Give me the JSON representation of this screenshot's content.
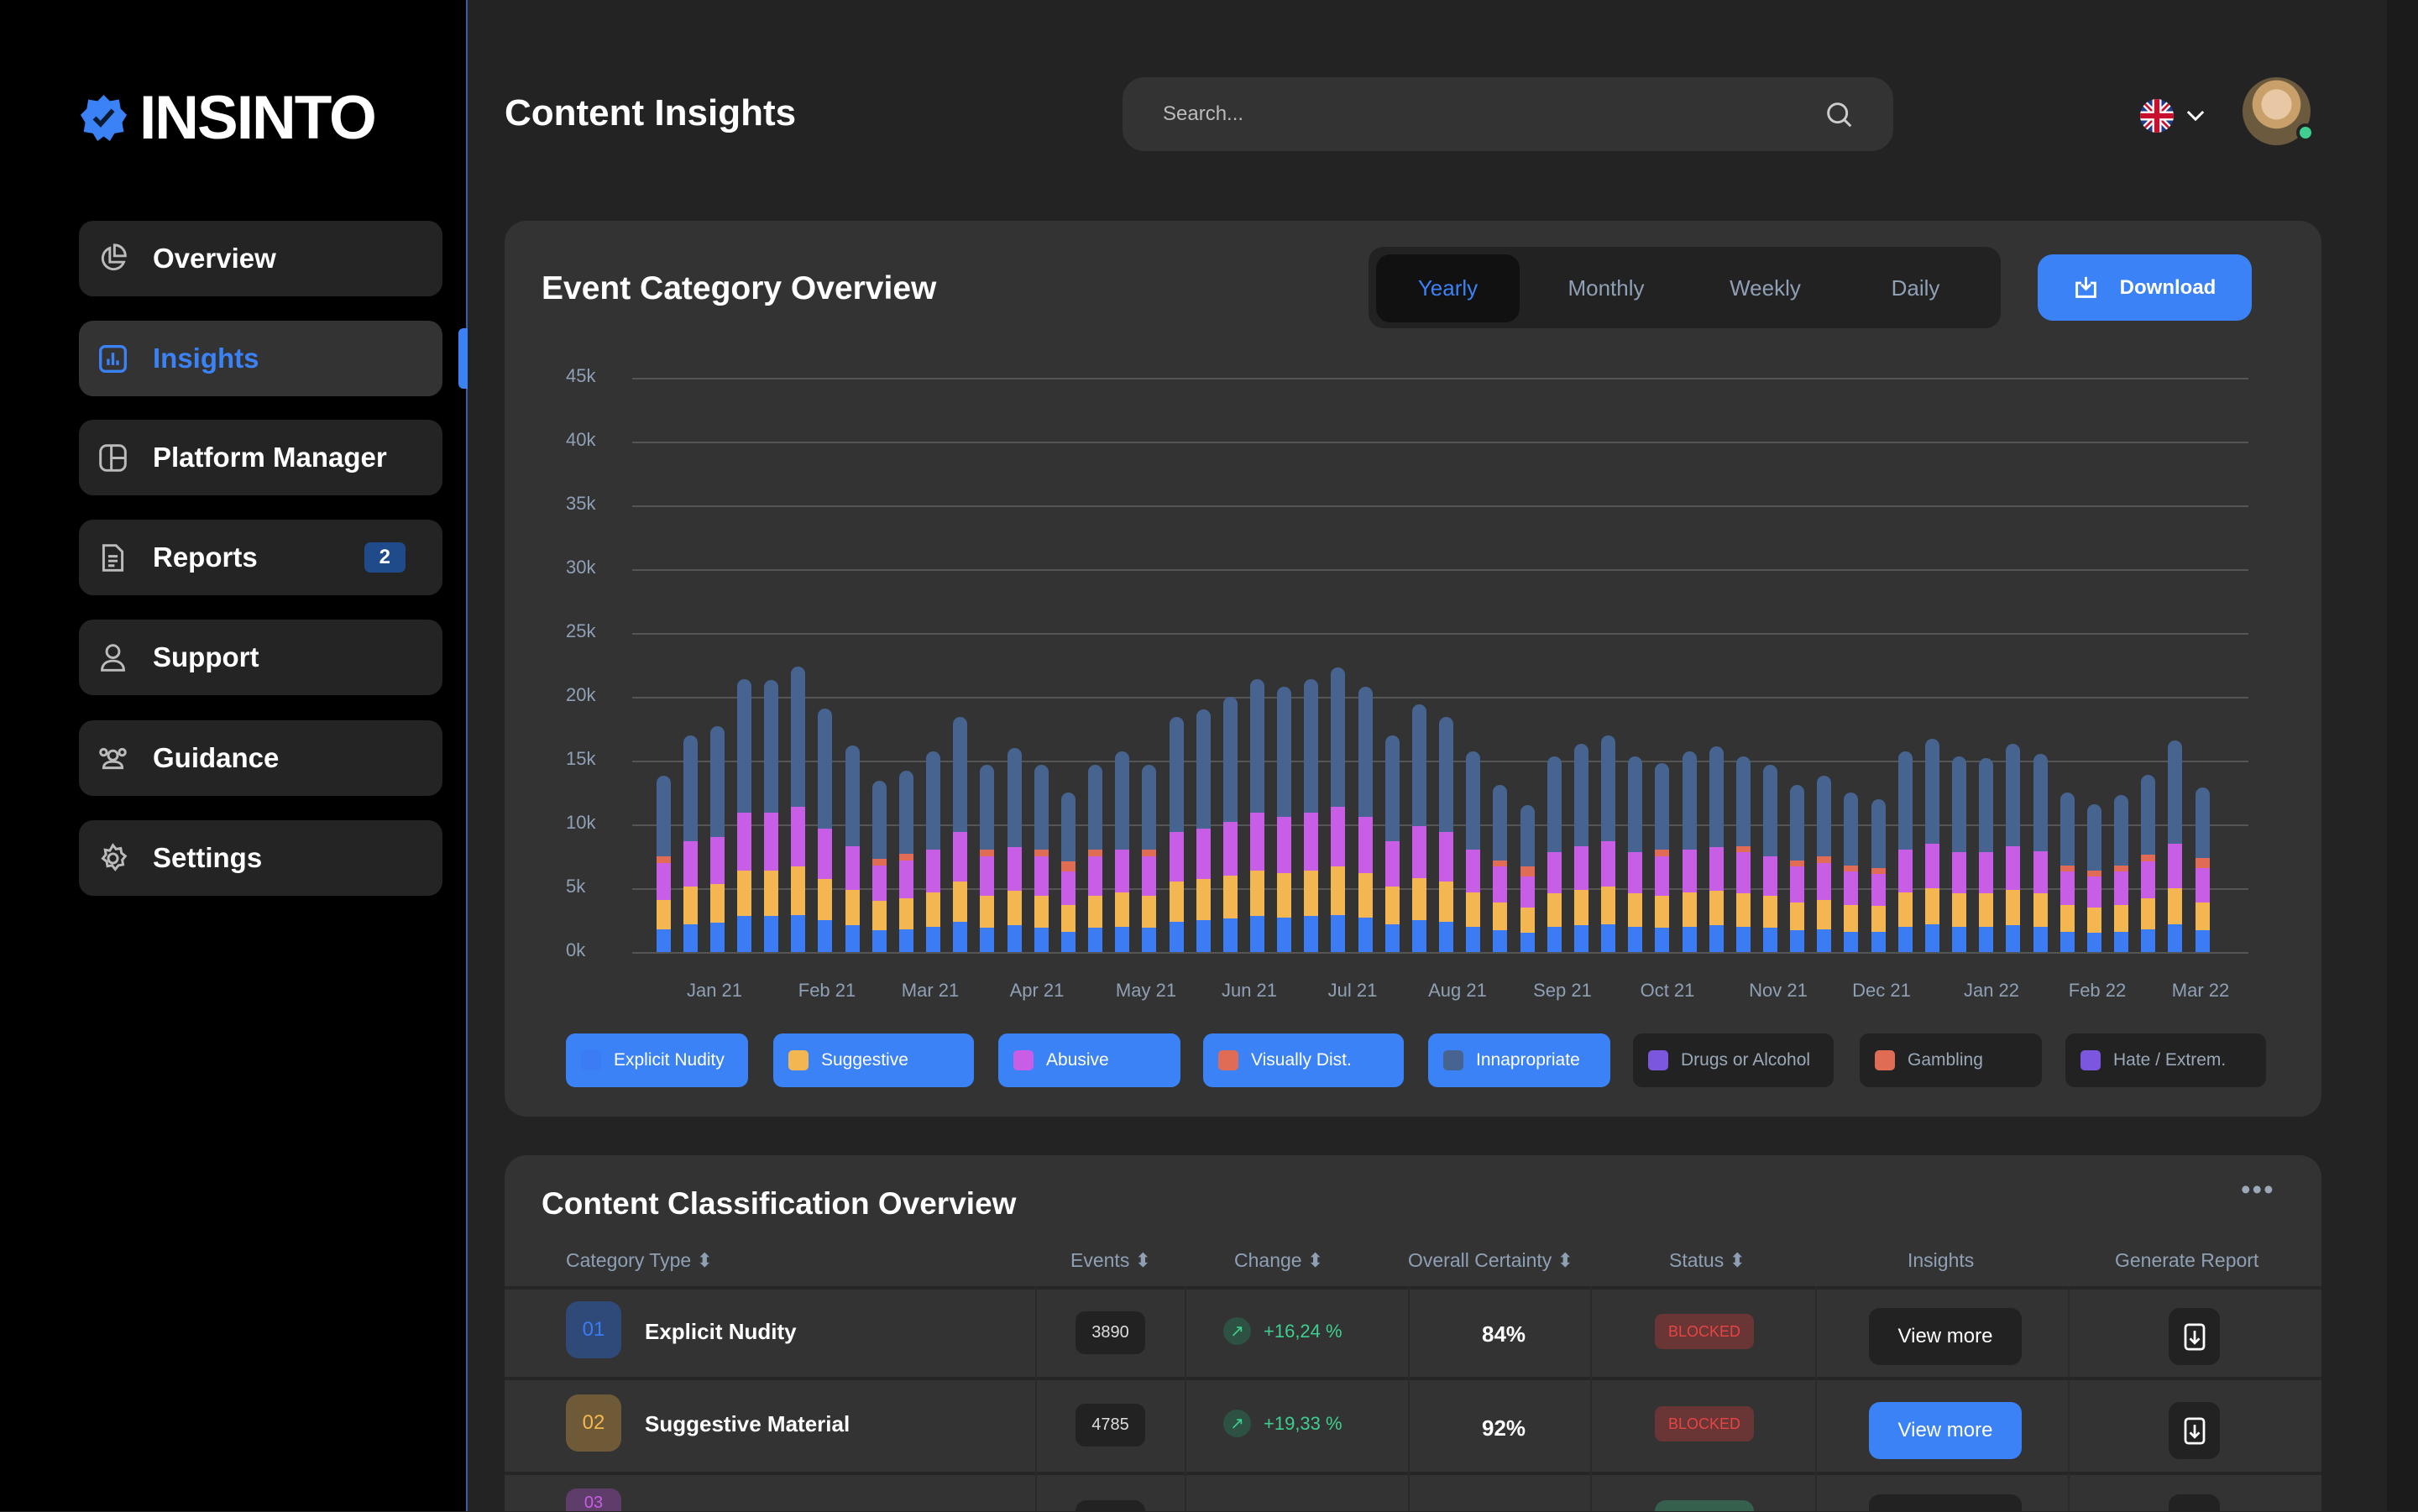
{
  "brand": {
    "name": "INSINTO"
  },
  "sidebar": {
    "items": [
      {
        "label": "Overview",
        "icon": "pie-chart-icon"
      },
      {
        "label": "Insights",
        "icon": "bar-chart-icon",
        "active": true
      },
      {
        "label": "Platform Manager",
        "icon": "layout-icon"
      },
      {
        "label": "Reports",
        "icon": "document-icon",
        "badge": "2"
      },
      {
        "label": "Support",
        "icon": "user-icon"
      },
      {
        "label": "Guidance",
        "icon": "users-icon"
      },
      {
        "label": "Settings",
        "icon": "gear-icon"
      }
    ]
  },
  "header": {
    "title": "Content Insights",
    "search_placeholder": "Search...",
    "language": "en-GB"
  },
  "chart_card": {
    "title": "Event Category Overview",
    "tabs": [
      {
        "label": "Yearly",
        "active": true
      },
      {
        "label": "Monthly"
      },
      {
        "label": "Weekly"
      },
      {
        "label": "Daily"
      }
    ],
    "download_label": "Download"
  },
  "chart_data": {
    "type": "bar",
    "stacked": true,
    "title": "Event Category Overview",
    "yticks": [
      "0k",
      "5k",
      "10k",
      "15k",
      "20k",
      "25k",
      "30k",
      "35k",
      "40k",
      "45k"
    ],
    "ylim": [
      0,
      45
    ],
    "yunit": "thousands",
    "xticks": [
      "Jan 21",
      "Feb 21",
      "Mar 21",
      "Apr 21",
      "May 21",
      "Jun 21",
      "Jul 21",
      "Aug 21",
      "Sep 21",
      "Oct 21",
      "Nov 21",
      "Dec 21",
      "Jan 22",
      "Feb 22",
      "Mar 22"
    ],
    "grid": true,
    "legend_position": "bottom",
    "legend": [
      {
        "name": "Explicit Nudity",
        "color": "#3b7cf4",
        "active": true
      },
      {
        "name": "Suggestive",
        "color": "#f4b650",
        "active": true
      },
      {
        "name": "Abusive",
        "color": "#c95ee6",
        "active": true
      },
      {
        "name": "Visually Dist.",
        "color": "#e06c55",
        "active": true
      },
      {
        "name": "Innapropriate",
        "color": "#46648f",
        "active": true
      },
      {
        "name": "Drugs or Alcohol",
        "color": "#7b57e0",
        "active": false
      },
      {
        "name": "Gambling",
        "color": "#e06c55",
        "active": false
      },
      {
        "name": "Hate / Extrem.",
        "color": "#7b57e0",
        "active": false
      }
    ],
    "series": [
      {
        "name": "Explicit Nudity",
        "values": [
          1.8,
          2.2,
          2.3,
          2.8,
          2.8,
          2.9,
          2.5,
          2.1,
          1.7,
          1.8,
          2.0,
          2.4,
          1.9,
          2.1,
          1.9,
          1.6,
          1.9,
          2.0,
          1.9,
          2.4,
          2.5,
          2.6,
          2.8,
          2.7,
          2.8,
          2.9,
          2.7,
          2.2,
          2.5,
          2.4,
          2.0,
          1.7,
          1.5,
          2.0,
          2.1,
          2.2,
          2.0,
          1.9,
          2.0,
          2.1,
          2.0,
          1.9,
          1.7,
          1.8,
          1.6,
          1.6,
          2.0,
          2.2,
          2.0,
          2.0,
          2.1,
          2.0,
          1.6,
          1.5,
          1.6,
          1.8,
          2.2,
          1.7
        ]
      },
      {
        "name": "Suggestive",
        "values": [
          2.3,
          2.9,
          3.0,
          3.6,
          3.6,
          3.8,
          3.2,
          2.8,
          2.3,
          2.4,
          2.7,
          3.1,
          2.5,
          2.7,
          2.5,
          2.1,
          2.5,
          2.7,
          2.5,
          3.1,
          3.2,
          3.4,
          3.6,
          3.5,
          3.6,
          3.8,
          3.5,
          2.9,
          3.3,
          3.1,
          2.7,
          2.2,
          2.0,
          2.6,
          2.8,
          2.9,
          2.6,
          2.5,
          2.7,
          2.7,
          2.6,
          2.5,
          2.2,
          2.3,
          2.1,
          2.0,
          2.7,
          2.8,
          2.6,
          2.6,
          2.8,
          2.6,
          2.1,
          2.0,
          2.1,
          2.4,
          2.8,
          2.2
        ]
      },
      {
        "name": "Abusive",
        "values": [
          2.9,
          3.6,
          3.7,
          4.5,
          4.5,
          4.7,
          4.0,
          3.4,
          2.8,
          3.0,
          3.3,
          3.9,
          3.1,
          3.4,
          3.1,
          2.6,
          3.1,
          3.3,
          3.1,
          3.9,
          4.0,
          4.2,
          4.5,
          4.4,
          4.5,
          4.7,
          4.4,
          3.6,
          4.1,
          3.9,
          3.3,
          2.8,
          2.4,
          3.2,
          3.4,
          3.6,
          3.2,
          3.1,
          3.3,
          3.4,
          3.2,
          3.1,
          2.8,
          2.9,
          2.6,
          2.5,
          3.3,
          3.5,
          3.2,
          3.2,
          3.4,
          3.3,
          2.6,
          2.4,
          2.6,
          2.9,
          3.5,
          2.7
        ]
      },
      {
        "name": "Visually Dist.",
        "values": [
          0.5,
          0,
          0,
          0,
          0,
          0,
          0,
          0,
          0.5,
          0.5,
          0,
          0,
          0.5,
          0,
          0.5,
          0.8,
          0.5,
          0,
          0.5,
          0,
          0,
          0,
          0,
          0,
          0,
          0,
          0,
          0,
          0,
          0,
          0,
          0.5,
          0.8,
          0,
          0,
          0,
          0,
          0.5,
          0,
          0,
          0.5,
          0,
          0.5,
          0.5,
          0.5,
          0.5,
          0,
          0,
          0,
          0,
          0,
          0,
          0.5,
          0.5,
          0.5,
          0.5,
          0,
          0.8
        ]
      },
      {
        "name": "Innapropriate",
        "values": [
          6.3,
          8.3,
          8.7,
          10.5,
          10.4,
          11.0,
          9.4,
          7.9,
          6.1,
          6.5,
          7.7,
          9.0,
          6.7,
          7.8,
          6.7,
          5.4,
          6.7,
          7.7,
          6.7,
          9.0,
          9.3,
          9.8,
          10.5,
          10.2,
          10.5,
          10.9,
          10.2,
          8.3,
          9.5,
          9.0,
          7.7,
          5.9,
          4.8,
          7.5,
          8.0,
          8.3,
          7.5,
          6.8,
          7.7,
          7.9,
          7.0,
          7.2,
          5.9,
          6.3,
          5.7,
          5.4,
          7.7,
          8.2,
          7.5,
          7.4,
          8.0,
          7.6,
          5.7,
          5.2,
          5.5,
          6.3,
          8.1,
          5.5
        ]
      }
    ]
  },
  "table_card": {
    "title": "Content Classification Overview",
    "more_label": "•••",
    "columns": [
      "Category Type",
      "Events",
      "Change",
      "Overall Certainty",
      "Status",
      "Insights",
      "Generate Report"
    ],
    "sort_icon": "⬍",
    "rows": [
      {
        "index": "01",
        "name": "Explicit Nudity",
        "events": "3890",
        "change": "+16,24 %",
        "certainty": "84%",
        "status": "BLOCKED",
        "action": "View more",
        "color": "#3b7cf4",
        "bg": "#2f4a78"
      },
      {
        "index": "02",
        "name": "Suggestive Material",
        "events": "4785",
        "change": "+19,33 %",
        "certainty": "92%",
        "status": "BLOCKED",
        "action": "View more",
        "color": "#f4b650",
        "bg": "#6e5a37"
      },
      {
        "index": "03",
        "color": "#c95ee6",
        "bg": "#5e3d6b"
      }
    ]
  }
}
